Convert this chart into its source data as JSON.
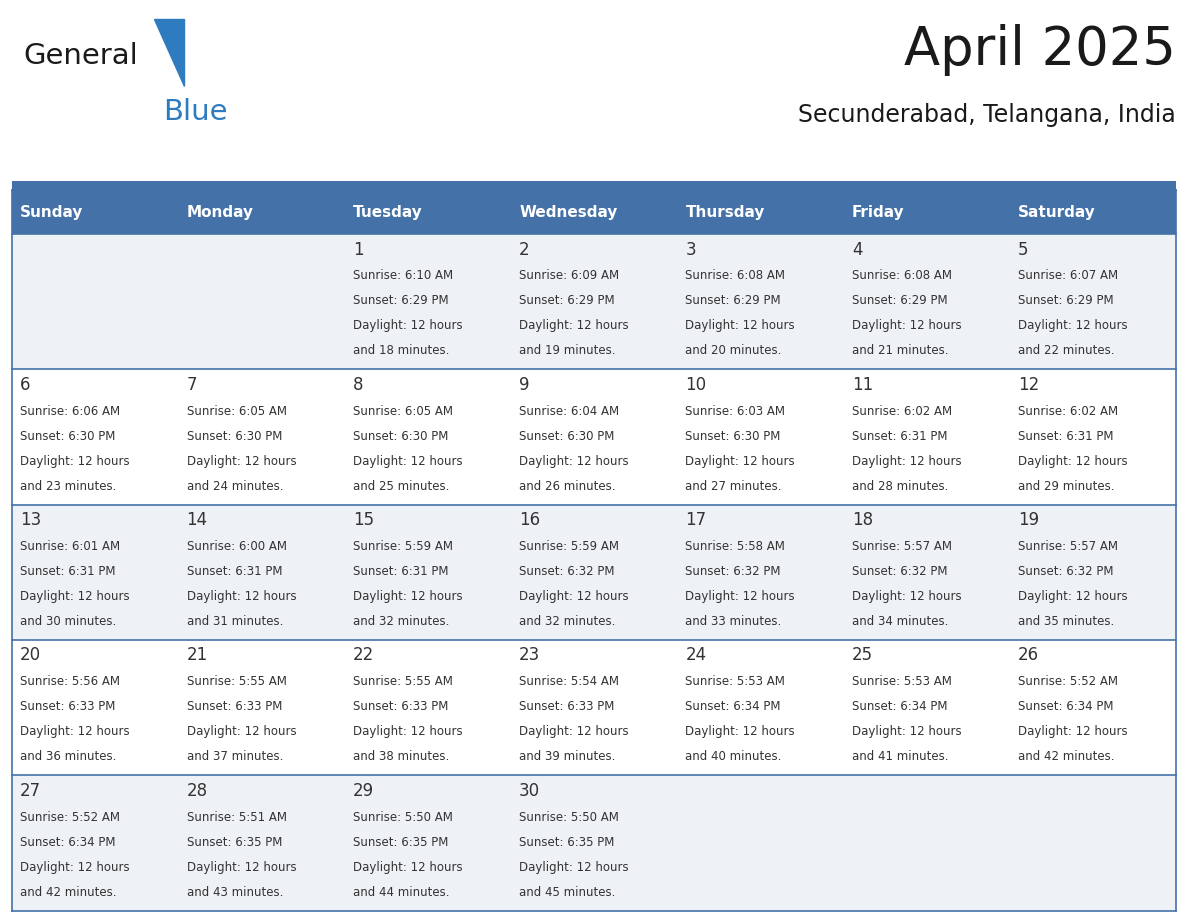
{
  "title": "April 2025",
  "subtitle": "Secunderabad, Telangana, India",
  "header_bg_color": "#4472a8",
  "header_text_color": "#ffffff",
  "cell_bg_even": "#eef1f5",
  "cell_bg_odd": "#ffffff",
  "border_color": "#4472a8",
  "text_color": "#333333",
  "days_of_week": [
    "Sunday",
    "Monday",
    "Tuesday",
    "Wednesday",
    "Thursday",
    "Friday",
    "Saturday"
  ],
  "calendar_data": [
    [
      {
        "day": "",
        "sunrise": "",
        "sunset": "",
        "daylight_min": 0
      },
      {
        "day": "",
        "sunrise": "",
        "sunset": "",
        "daylight_min": 0
      },
      {
        "day": "1",
        "sunrise": "6:10 AM",
        "sunset": "6:29 PM",
        "daylight_min": 18
      },
      {
        "day": "2",
        "sunrise": "6:09 AM",
        "sunset": "6:29 PM",
        "daylight_min": 19
      },
      {
        "day": "3",
        "sunrise": "6:08 AM",
        "sunset": "6:29 PM",
        "daylight_min": 20
      },
      {
        "day": "4",
        "sunrise": "6:08 AM",
        "sunset": "6:29 PM",
        "daylight_min": 21
      },
      {
        "day": "5",
        "sunrise": "6:07 AM",
        "sunset": "6:29 PM",
        "daylight_min": 22
      }
    ],
    [
      {
        "day": "6",
        "sunrise": "6:06 AM",
        "sunset": "6:30 PM",
        "daylight_min": 23
      },
      {
        "day": "7",
        "sunrise": "6:05 AM",
        "sunset": "6:30 PM",
        "daylight_min": 24
      },
      {
        "day": "8",
        "sunrise": "6:05 AM",
        "sunset": "6:30 PM",
        "daylight_min": 25
      },
      {
        "day": "9",
        "sunrise": "6:04 AM",
        "sunset": "6:30 PM",
        "daylight_min": 26
      },
      {
        "day": "10",
        "sunrise": "6:03 AM",
        "sunset": "6:30 PM",
        "daylight_min": 27
      },
      {
        "day": "11",
        "sunrise": "6:02 AM",
        "sunset": "6:31 PM",
        "daylight_min": 28
      },
      {
        "day": "12",
        "sunrise": "6:02 AM",
        "sunset": "6:31 PM",
        "daylight_min": 29
      }
    ],
    [
      {
        "day": "13",
        "sunrise": "6:01 AM",
        "sunset": "6:31 PM",
        "daylight_min": 30
      },
      {
        "day": "14",
        "sunrise": "6:00 AM",
        "sunset": "6:31 PM",
        "daylight_min": 31
      },
      {
        "day": "15",
        "sunrise": "5:59 AM",
        "sunset": "6:31 PM",
        "daylight_min": 32
      },
      {
        "day": "16",
        "sunrise": "5:59 AM",
        "sunset": "6:32 PM",
        "daylight_min": 32
      },
      {
        "day": "17",
        "sunrise": "5:58 AM",
        "sunset": "6:32 PM",
        "daylight_min": 33
      },
      {
        "day": "18",
        "sunrise": "5:57 AM",
        "sunset": "6:32 PM",
        "daylight_min": 34
      },
      {
        "day": "19",
        "sunrise": "5:57 AM",
        "sunset": "6:32 PM",
        "daylight_min": 35
      }
    ],
    [
      {
        "day": "20",
        "sunrise": "5:56 AM",
        "sunset": "6:33 PM",
        "daylight_min": 36
      },
      {
        "day": "21",
        "sunrise": "5:55 AM",
        "sunset": "6:33 PM",
        "daylight_min": 37
      },
      {
        "day": "22",
        "sunrise": "5:55 AM",
        "sunset": "6:33 PM",
        "daylight_min": 38
      },
      {
        "day": "23",
        "sunrise": "5:54 AM",
        "sunset": "6:33 PM",
        "daylight_min": 39
      },
      {
        "day": "24",
        "sunrise": "5:53 AM",
        "sunset": "6:34 PM",
        "daylight_min": 40
      },
      {
        "day": "25",
        "sunrise": "5:53 AM",
        "sunset": "6:34 PM",
        "daylight_min": 41
      },
      {
        "day": "26",
        "sunrise": "5:52 AM",
        "sunset": "6:34 PM",
        "daylight_min": 42
      }
    ],
    [
      {
        "day": "27",
        "sunrise": "5:52 AM",
        "sunset": "6:34 PM",
        "daylight_min": 42
      },
      {
        "day": "28",
        "sunrise": "5:51 AM",
        "sunset": "6:35 PM",
        "daylight_min": 43
      },
      {
        "day": "29",
        "sunrise": "5:50 AM",
        "sunset": "6:35 PM",
        "daylight_min": 44
      },
      {
        "day": "30",
        "sunrise": "5:50 AM",
        "sunset": "6:35 PM",
        "daylight_min": 45
      },
      {
        "day": "",
        "sunrise": "",
        "sunset": "",
        "daylight_min": 0
      },
      {
        "day": "",
        "sunrise": "",
        "sunset": "",
        "daylight_min": 0
      },
      {
        "day": "",
        "sunrise": "",
        "sunset": "",
        "daylight_min": 0
      }
    ]
  ],
  "logo_text1": "General",
  "logo_text2": "Blue",
  "logo_color1": "#1a1a1a",
  "logo_color2": "#2e7bbf",
  "logo_triangle_color": "#2e7bbf",
  "title_fontsize": 38,
  "subtitle_fontsize": 17,
  "header_fontsize": 11,
  "day_number_fontsize": 12,
  "cell_text_fontsize": 8.5
}
